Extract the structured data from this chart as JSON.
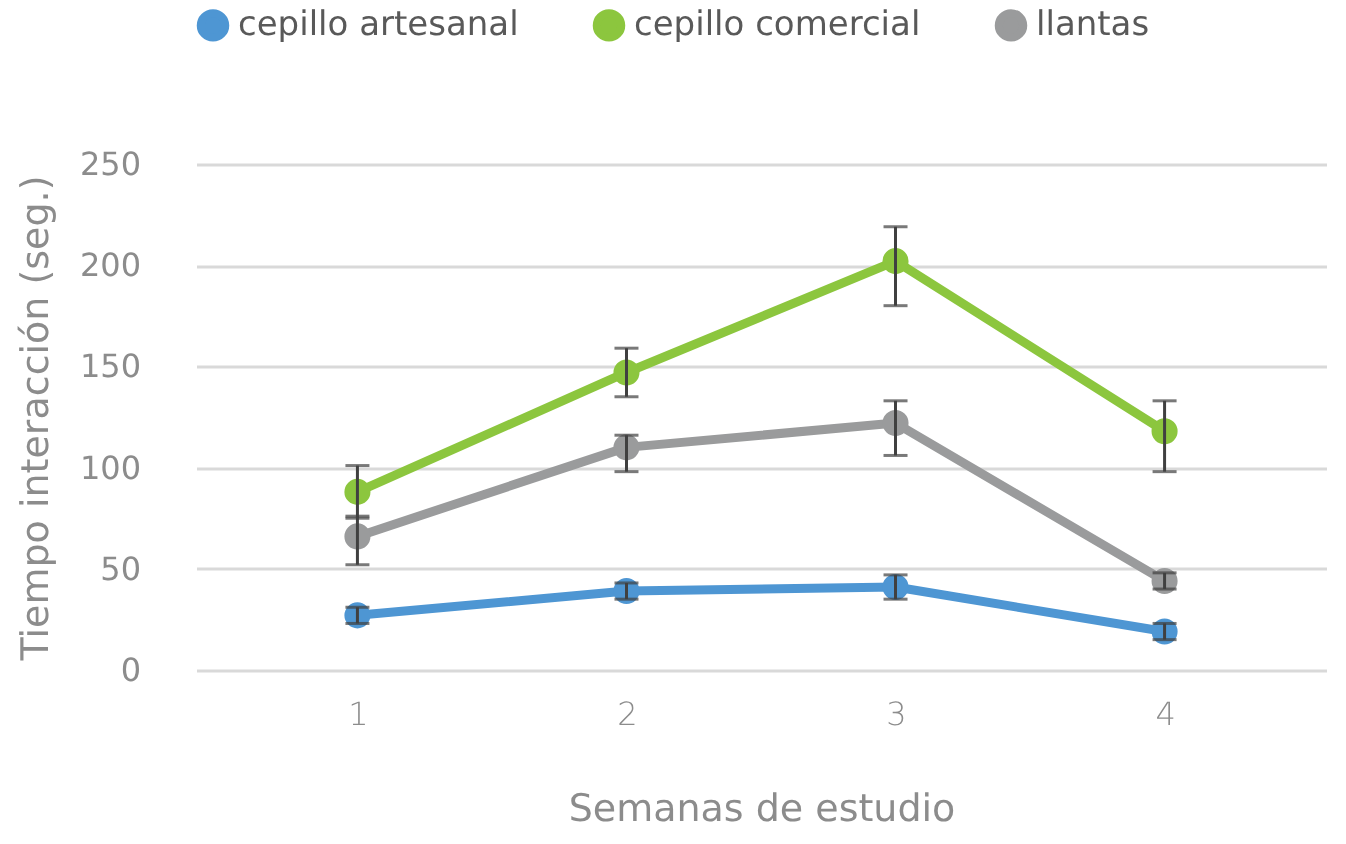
{
  "chart_data": {
    "type": "line",
    "xlabel": "Semanas de estudio",
    "ylabel": "Tiempo interacción (seg.)",
    "categories": [
      "1",
      "2",
      "3",
      "4"
    ],
    "series": [
      {
        "name": "cepillo artesanal",
        "color": "#4e96d3",
        "values": [
          27,
          39,
          41,
          19
        ],
        "errors": [
          4,
          4,
          6,
          4
        ]
      },
      {
        "name": "cepillo comercial",
        "color": "#8cc63e",
        "values": [
          88,
          147,
          202,
          118
        ],
        "errors": [
          13,
          12,
          [
            180,
            219
          ],
          [
            98,
            133
          ]
        ]
      },
      {
        "name": "llantas",
        "color": "#9a9b9c",
        "values": [
          66,
          110,
          122,
          44
        ],
        "errors": [
          [
            52,
            76
          ],
          [
            98,
            116
          ],
          [
            106,
            133
          ],
          4
        ]
      }
    ],
    "ylim": [
      0,
      250
    ],
    "yticks": [
      0,
      50,
      100,
      150,
      200,
      250
    ],
    "grid": "y",
    "legend": "top",
    "marker": "circle",
    "line_style": "solid"
  }
}
